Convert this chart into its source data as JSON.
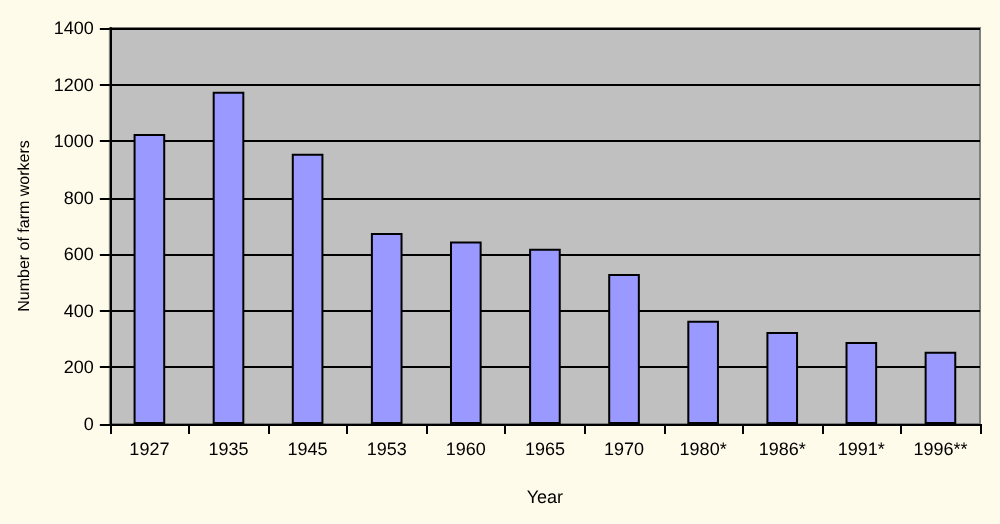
{
  "chart_data": {
    "type": "bar",
    "xlabel": "Year",
    "ylabel": "Number of farm workers",
    "categories": [
      "1927",
      "1935",
      "1945",
      "1953",
      "1960",
      "1965",
      "1970",
      "1980*",
      "1986*",
      "1991*",
      "1996**"
    ],
    "values": [
      1025,
      1175,
      955,
      675,
      645,
      620,
      530,
      365,
      325,
      290,
      255
    ],
    "color": "#9999ff",
    "ylim": [
      0,
      1400
    ],
    "yticks": [
      0,
      200,
      400,
      600,
      800,
      1000,
      1200,
      1400
    ],
    "grid": "y"
  }
}
